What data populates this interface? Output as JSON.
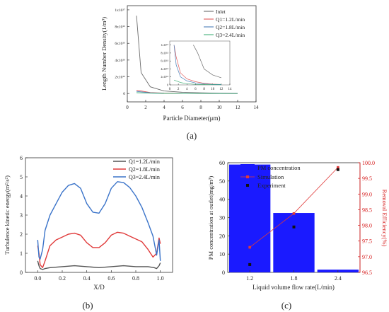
{
  "chart_data": [
    {
      "type": "line",
      "panel_label": "(a)",
      "xlabel": "Particle Diameter(μm)",
      "ylabel": "Length Number Density(1/m³)",
      "xlim": [
        0,
        14
      ],
      "ylim": [
        -1e+16,
        1.05e+17
      ],
      "x_ticks": [
        0,
        2,
        4,
        6,
        8,
        10,
        12,
        14
      ],
      "y_ticks": [
        0,
        2e+16,
        4e+16,
        6e+16,
        8e+16,
        1e+17
      ],
      "y_tick_labels": [
        "0",
        "2x10¹⁶",
        "4x10¹⁶",
        "6x10¹⁶",
        "8x10¹⁶",
        "1x10¹⁷"
      ],
      "legend_position": "top-right",
      "colors": {
        "Inlet": "#6b6b6b",
        "Q1=1.2L/min": "#e05a5a",
        "Q2=1.8L/min": "#4a7fb8",
        "Q3=2.4L/min": "#43b07a"
      },
      "series": [
        {
          "name": "Inlet",
          "x": [
            1,
            1.5,
            2.5,
            4,
            6,
            8,
            10,
            12
          ],
          "y": [
            9.3e+16,
            2.5e+16,
            8000000000000000.0,
            3000000000000000.0,
            1500000000000000.0,
            800000000000000.0,
            400000000000000.0,
            200000000000000.0
          ]
        },
        {
          "name": "Q1=1.2L/min",
          "x": [
            1,
            2.5,
            4,
            6,
            8,
            10,
            12
          ],
          "y": [
            4000000000000000.0,
            1200000000000000.0,
            500000000000000.0,
            200000000000000.0,
            100000000000000.0,
            50000000000000.0,
            20000000000000.0
          ]
        },
        {
          "name": "Q2=1.8L/min",
          "x": [
            1,
            2.5,
            4,
            6,
            8,
            10,
            12
          ],
          "y": [
            2500000000000000.0,
            800000000000000.0,
            300000000000000.0,
            150000000000000.0,
            60000000000000.0,
            30000000000000.0,
            10000000000000.0
          ]
        },
        {
          "name": "Q3=2.4L/min",
          "x": [
            1,
            2.5,
            4,
            6,
            8,
            10,
            12
          ],
          "y": [
            1000000000000000.0,
            400000000000000.0,
            150000000000000.0,
            60000000000000.0,
            30000000000000.0,
            10000000000000.0,
            5000000000000.0
          ]
        }
      ],
      "inset": {
        "xlim": [
          0,
          14
        ],
        "ylim": [
          0,
          1100000000000000.0
        ],
        "x_ticks": [
          0,
          2,
          4,
          6,
          8,
          10,
          12,
          14
        ],
        "y_ticks": [
          0,
          200000000000000.0,
          400000000000000.0,
          600000000000000.0,
          800000000000000.0,
          1000000000000000.0
        ],
        "y_tick_labels": [
          "0",
          "2x10¹⁴",
          "4x10¹⁴",
          "6x10¹⁴",
          "8x10¹⁴",
          "1x10¹⁵"
        ],
        "series": [
          {
            "name": "Inlet",
            "x": [
              5.5,
              6.5,
              8,
              10,
              12
            ],
            "y": [
              1000000000000000.0,
              800000000000000.0,
              400000000000000.0,
              250000000000000.0,
              180000000000000.0
            ]
          },
          {
            "name": "Q1=1.2L/min",
            "x": [
              1,
              1.5,
              2.5,
              4,
              6,
              8,
              10,
              12
            ],
            "y": [
              1000000000000000.0,
              700000000000000.0,
              300000000000000.0,
              150000000000000.0,
              80000000000000.0,
              40000000000000.0,
              20000000000000.0,
              10000000000000.0
            ]
          },
          {
            "name": "Q2=1.8L/min",
            "x": [
              1,
              1.5,
              2.5,
              4,
              6,
              8,
              10,
              12
            ],
            "y": [
              1000000000000000.0,
              500000000000000.0,
              200000000000000.0,
              100000000000000.0,
              50000000000000.0,
              25000000000000.0,
              15000000000000.0,
              10000000000000.0
            ]
          },
          {
            "name": "Q3=2.4L/min",
            "x": [
              1,
              2.5,
              4,
              6,
              8,
              10,
              12
            ],
            "y": [
              120000000000000.0,
              60000000000000.0,
              30000000000000.0,
              15000000000000.0,
              10000000000000.0,
              6000000000000.0,
              4000000000000.0
            ]
          }
        ]
      }
    },
    {
      "type": "line",
      "panel_label": "(b)",
      "xlabel": "X/D",
      "ylabel": "Turbulence kinetic energy(m²/s²)",
      "xlim": [
        -0.1,
        1.1
      ],
      "ylim": [
        0,
        6
      ],
      "x_ticks": [
        0,
        0.2,
        0.4,
        0.6,
        0.8,
        1.0
      ],
      "x_tick_labels": [
        "0.0",
        "0.2",
        "0.4",
        "0.6",
        "0.8",
        "1.0"
      ],
      "y_ticks": [
        0,
        1,
        2,
        3,
        4,
        5,
        6
      ],
      "legend_position": "top-right",
      "colors": {
        "Q1=1.2L/min": "#555555",
        "Q2=1.8L/min": "#e03a3a",
        "Q3=2.4L/min": "#3a73c9"
      },
      "series": [
        {
          "name": "Q1=1.2L/min",
          "x": [
            0,
            0.01,
            0.02,
            0.04,
            0.06,
            0.1,
            0.2,
            0.3,
            0.4,
            0.5,
            0.6,
            0.7,
            0.8,
            0.9,
            0.95,
            0.97,
            0.99,
            1.0
          ],
          "y": [
            0.6,
            0.35,
            0.2,
            0.15,
            0.2,
            0.25,
            0.3,
            0.35,
            0.3,
            0.25,
            0.3,
            0.35,
            0.3,
            0.3,
            0.25,
            0.2,
            0.35,
            0.5
          ]
        },
        {
          "name": "Q2=1.8L/min",
          "x": [
            0,
            0.01,
            0.02,
            0.04,
            0.06,
            0.1,
            0.15,
            0.2,
            0.25,
            0.3,
            0.35,
            0.4,
            0.45,
            0.5,
            0.55,
            0.6,
            0.65,
            0.7,
            0.75,
            0.8,
            0.85,
            0.9,
            0.94,
            0.97,
            0.99,
            1.0
          ],
          "y": [
            1.4,
            1.0,
            0.4,
            0.25,
            0.6,
            1.4,
            1.7,
            1.85,
            2.0,
            2.05,
            1.95,
            1.55,
            1.3,
            1.3,
            1.55,
            1.95,
            2.1,
            2.05,
            1.9,
            1.75,
            1.6,
            1.2,
            0.8,
            1.0,
            1.8,
            1.5
          ]
        },
        {
          "name": "Q3=2.4L/min",
          "x": [
            0,
            0.01,
            0.02,
            0.04,
            0.06,
            0.1,
            0.15,
            0.2,
            0.25,
            0.3,
            0.35,
            0.4,
            0.45,
            0.5,
            0.55,
            0.6,
            0.65,
            0.7,
            0.75,
            0.8,
            0.85,
            0.9,
            0.94,
            0.97,
            0.99,
            1.0
          ],
          "y": [
            1.7,
            0.8,
            0.7,
            1.2,
            2.2,
            3.0,
            3.6,
            4.2,
            4.55,
            4.65,
            4.4,
            3.6,
            3.15,
            3.1,
            3.6,
            4.4,
            4.75,
            4.7,
            4.45,
            4.0,
            3.4,
            2.6,
            1.9,
            0.9,
            1.7,
            0.6
          ]
        }
      ]
    },
    {
      "type": "bar",
      "panel_label": "(c)",
      "xlabel": "Liquid volume flow rate(L/min)",
      "ylabel": "PM concentration at outlet(mg/m³)",
      "y2label": "Removal Efficiency(%)",
      "categories": [
        "1.2",
        "1.8",
        "2.4"
      ],
      "ylim": [
        0,
        60
      ],
      "y_ticks": [
        0,
        10,
        20,
        30,
        40,
        50,
        60
      ],
      "y2lim": [
        96.5,
        100
      ],
      "y2_ticks": [
        96.5,
        97.0,
        97.5,
        98.0,
        98.5,
        99.0,
        99.5,
        100.0
      ],
      "y2_tick_labels": [
        "96.5",
        "97.0",
        "97.5",
        "98.0",
        "98.5",
        "99.0",
        "99.5",
        "100.0"
      ],
      "legend_position": "top-left",
      "colors": {
        "bar": "#1a1aff",
        "simulation": "#e03a3a",
        "experiment": "#111111",
        "right_axis": "#d61c1c"
      },
      "series": [
        {
          "name": "PM concentration",
          "kind": "bar",
          "values": [
            59,
            32.5,
            1.5
          ]
        },
        {
          "name": "Simulation",
          "kind": "line",
          "values": [
            97.3,
            98.38,
            99.85
          ]
        },
        {
          "name": "Experiment",
          "kind": "scatter",
          "values": [
            96.75,
            97.95,
            99.78
          ]
        }
      ]
    }
  ]
}
